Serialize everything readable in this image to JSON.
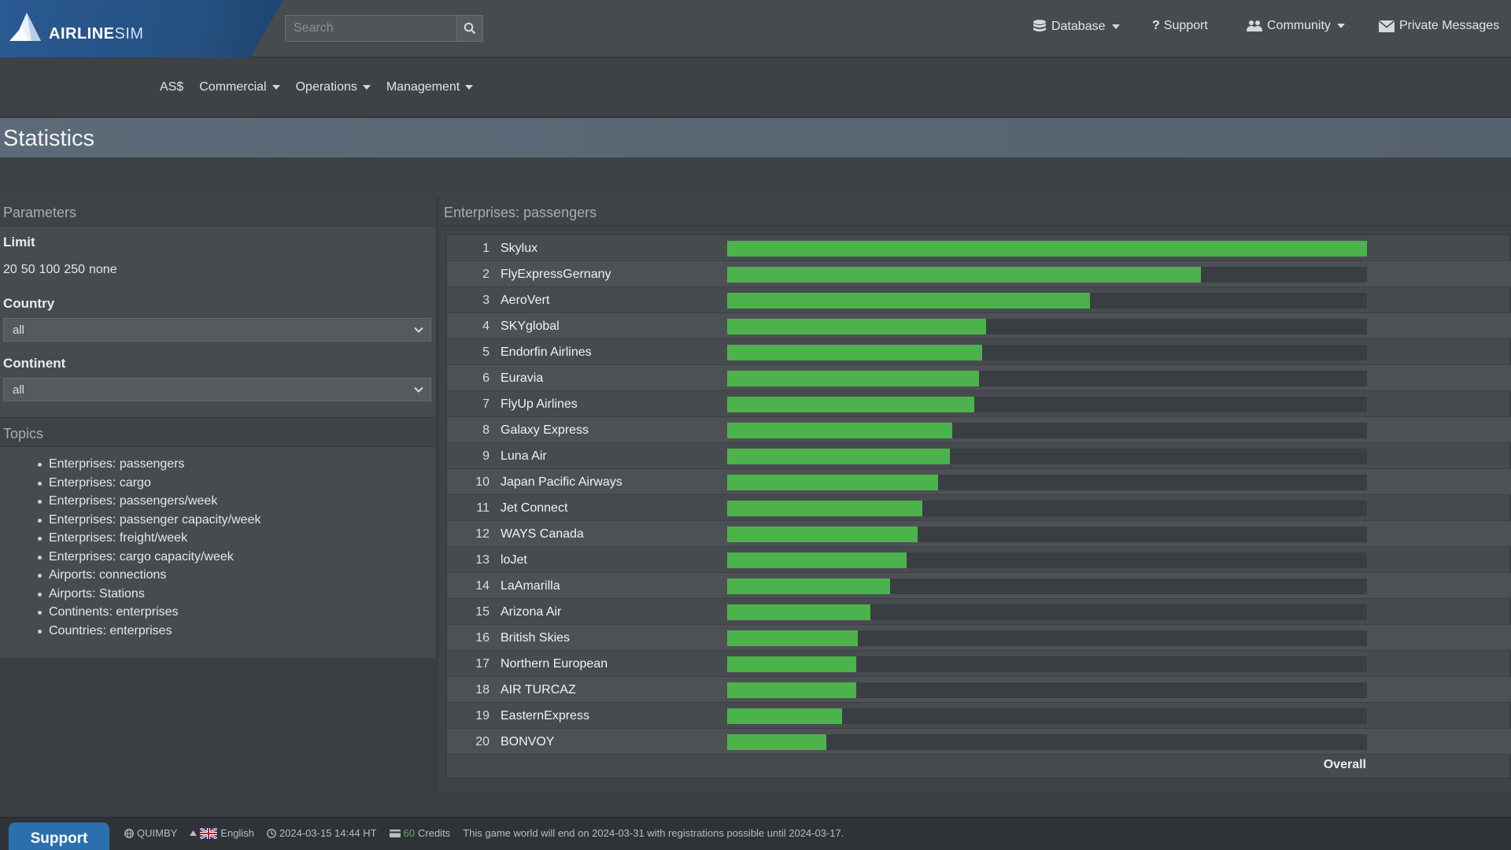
{
  "brand": {
    "name_main": "AIRLINE",
    "name_sub": "SIM"
  },
  "search": {
    "placeholder": "Search"
  },
  "topnav": {
    "database": "Database",
    "support": "Support",
    "community": "Community",
    "messages": "Private Messages"
  },
  "subnav": {
    "currency": "AS$",
    "commercial": "Commercial",
    "operations": "Operations",
    "management": "Management"
  },
  "page": {
    "title": "Statistics"
  },
  "params": {
    "header": "Parameters",
    "limit_label": "Limit",
    "limit_options": [
      "20",
      "50",
      "100",
      "250",
      "none"
    ],
    "country_label": "Country",
    "country_value": "all",
    "continent_label": "Continent",
    "continent_value": "all"
  },
  "topics": {
    "header": "Topics",
    "items": [
      "Enterprises: passengers",
      "Enterprises: cargo",
      "Enterprises: passengers/week",
      "Enterprises: passenger capacity/week",
      "Enterprises: freight/week",
      "Enterprises: cargo capacity/week",
      "Airports: connections",
      "Airports: Stations",
      "Continents: enterprises",
      "Countries: enterprises"
    ]
  },
  "ranking": {
    "header": "Enterprises: passengers",
    "overall_label": "Overall",
    "bar_color": "#4cb24c",
    "rows": [
      {
        "rank": "1",
        "name": "Skylux",
        "share": 1.0
      },
      {
        "rank": "2",
        "name": "FlyExpressGernany",
        "share": 0.74
      },
      {
        "rank": "3",
        "name": "AeroVert",
        "share": 0.567
      },
      {
        "rank": "4",
        "name": "SKYglobal",
        "share": 0.405
      },
      {
        "rank": "5",
        "name": "Endorfin Airlines",
        "share": 0.399
      },
      {
        "rank": "6",
        "name": "Euravia",
        "share": 0.394
      },
      {
        "rank": "7",
        "name": "FlyUp Airlines",
        "share": 0.386
      },
      {
        "rank": "8",
        "name": "Galaxy Express",
        "share": 0.352
      },
      {
        "rank": "9",
        "name": "Luna Air",
        "share": 0.348
      },
      {
        "rank": "10",
        "name": "Japan Pacific Airways",
        "share": 0.33
      },
      {
        "rank": "11",
        "name": "Jet Connect",
        "share": 0.305
      },
      {
        "rank": "12",
        "name": "WAYS Canada",
        "share": 0.298
      },
      {
        "rank": "13",
        "name": "loJet",
        "share": 0.281
      },
      {
        "rank": "14",
        "name": "LaAmarilla",
        "share": 0.254
      },
      {
        "rank": "15",
        "name": "Arizona Air",
        "share": 0.224
      },
      {
        "rank": "16",
        "name": "British Skies",
        "share": 0.204
      },
      {
        "rank": "17",
        "name": "Northern European",
        "share": 0.202
      },
      {
        "rank": "18",
        "name": "AIR TURCAZ",
        "share": 0.202
      },
      {
        "rank": "19",
        "name": "EasternExpress",
        "share": 0.179
      },
      {
        "rank": "20",
        "name": "BONVOY",
        "share": 0.155
      }
    ]
  },
  "footer": {
    "support_label": "Support",
    "world": "QUIMBY",
    "language": "English",
    "datetime": "2024-03-15 14:44 HT",
    "credits_count": "60",
    "credits_label": "Credits",
    "notice": "This game world will end on 2024-03-31 with registrations possible until 2024-03-17."
  }
}
